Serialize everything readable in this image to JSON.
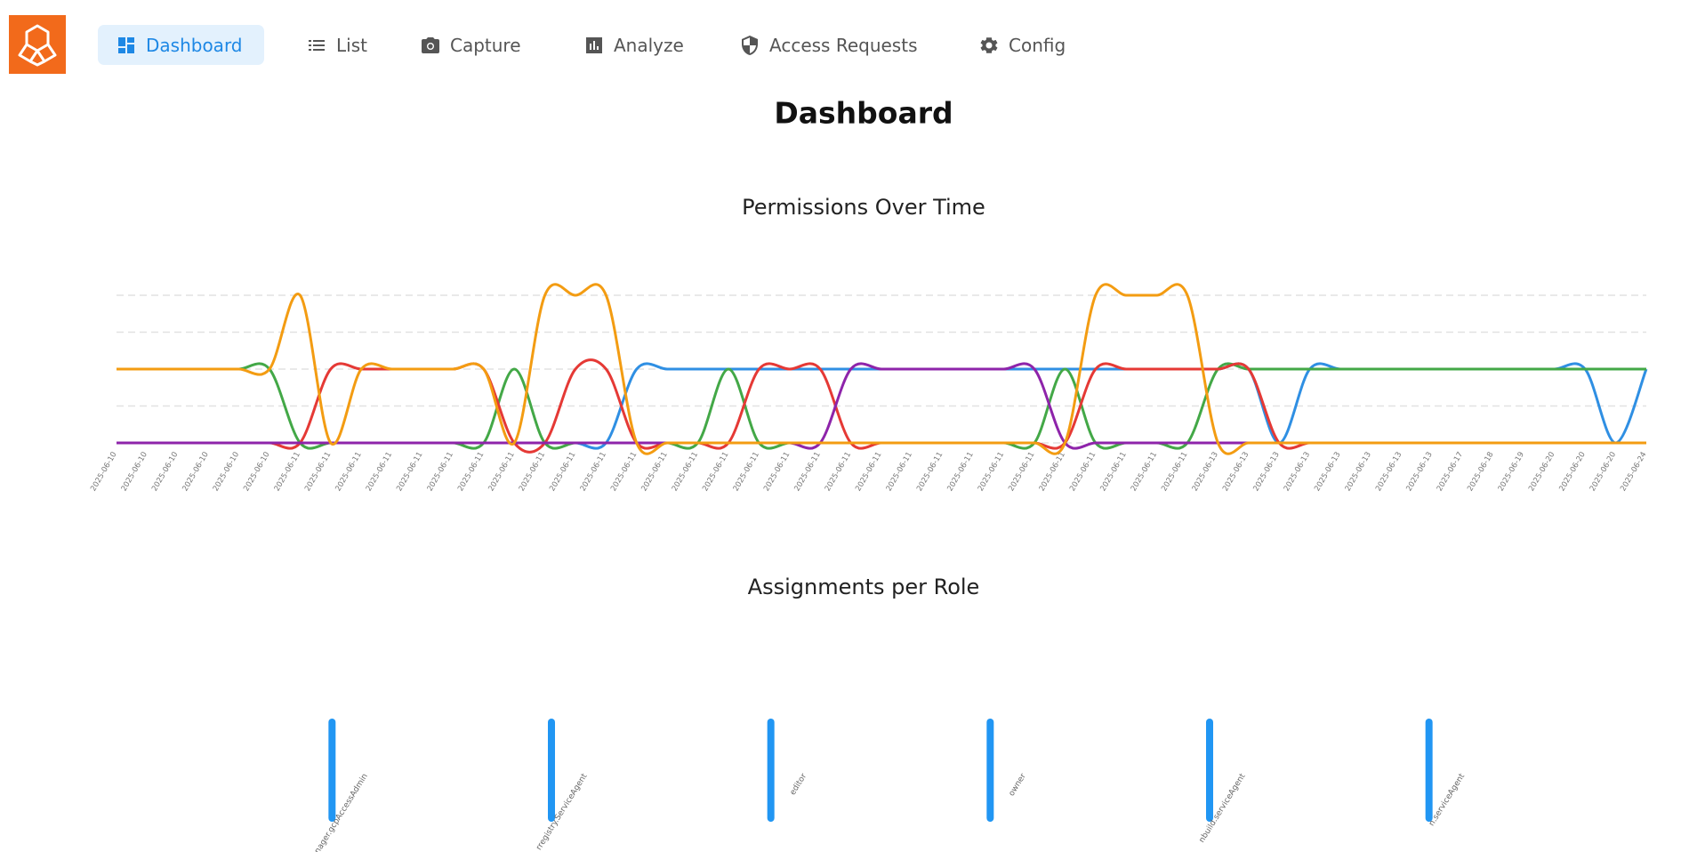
{
  "nav": {
    "items": [
      "Dashboard",
      "List",
      "Capture",
      "Analyze",
      "Access Requests",
      "Config"
    ]
  },
  "page_title": "Dashboard",
  "chart_data": [
    {
      "type": "line",
      "title": "Permissions Over Time",
      "smooth": true,
      "grid": true,
      "show_ytick_labels": false,
      "categories": [
        "2025-06-10",
        "2025-06-10",
        "2025-06-10",
        "2025-06-10",
        "2025-06-10",
        "2025-06-10",
        "2025-06-11",
        "2025-06-11",
        "2025-06-11",
        "2025-06-11",
        "2025-06-11",
        "2025-06-11",
        "2025-06-11",
        "2025-06-11",
        "2025-06-11",
        "2025-06-11",
        "2025-06-11",
        "2025-06-11",
        "2025-06-11",
        "2025-06-11",
        "2025-06-11",
        "2025-06-11",
        "2025-06-11",
        "2025-06-11",
        "2025-06-11",
        "2025-06-11",
        "2025-06-11",
        "2025-06-11",
        "2025-06-11",
        "2025-06-11",
        "2025-06-11",
        "2025-06-11",
        "2025-06-11",
        "2025-06-11",
        "2025-06-11",
        "2025-06-11",
        "2025-06-13",
        "2025-06-13",
        "2025-06-13",
        "2025-06-13",
        "2025-06-13",
        "2025-06-13",
        "2025-06-13",
        "2025-06-13",
        "2025-06-17",
        "2025-06-18",
        "2025-06-19",
        "2025-06-20",
        "2025-06-20",
        "2025-06-20",
        "2025-06-24"
      ],
      "ylim": [
        0,
        2
      ],
      "yticks": [
        0,
        0.5,
        1,
        1.5,
        2
      ],
      "series": [
        {
          "color": "#2f8fe3",
          "values": [
            0,
            0,
            0,
            0,
            0,
            0,
            0,
            0,
            0,
            0,
            0,
            0,
            0,
            0,
            0,
            0,
            0,
            1,
            1,
            1,
            1,
            1,
            1,
            1,
            1,
            1,
            1,
            1,
            1,
            1,
            1,
            1,
            1,
            1,
            1,
            1,
            1,
            1,
            0,
            1,
            1,
            1,
            1,
            1,
            1,
            1,
            1,
            1,
            1,
            0,
            1
          ]
        },
        {
          "color": "#43a847",
          "values": [
            1,
            1,
            1,
            1,
            1,
            1,
            0,
            0,
            0,
            0,
            0,
            0,
            0,
            1,
            0,
            0,
            0,
            0,
            0,
            0,
            1,
            0,
            0,
            0,
            0,
            0,
            0,
            0,
            0,
            0,
            0,
            1,
            0,
            0,
            0,
            0,
            1,
            1,
            1,
            1,
            1,
            1,
            1,
            1,
            1,
            1,
            1,
            1,
            1,
            1,
            1
          ]
        },
        {
          "color": "#e53935",
          "values": [
            0,
            0,
            0,
            0,
            0,
            0,
            0,
            1,
            1,
            1,
            1,
            1,
            1,
            0,
            0,
            1,
            1,
            0,
            0,
            0,
            0,
            1,
            1,
            1,
            0,
            0,
            0,
            0,
            0,
            0,
            0,
            0,
            1,
            1,
            1,
            1,
            1,
            1,
            0,
            0,
            0,
            0,
            0,
            0,
            0,
            0,
            0,
            0,
            0,
            0,
            0
          ]
        },
        {
          "color": "#8e24aa",
          "values": [
            0,
            0,
            0,
            0,
            0,
            0,
            0,
            0,
            0,
            0,
            0,
            0,
            0,
            0,
            0,
            0,
            0,
            0,
            0,
            0,
            0,
            0,
            0,
            0,
            1,
            1,
            1,
            1,
            1,
            1,
            1,
            0,
            0,
            0,
            0,
            0,
            0,
            0,
            0,
            0,
            0,
            0,
            0,
            0,
            0,
            0,
            0,
            0,
            0,
            0,
            0
          ]
        },
        {
          "color": "#f39c12",
          "values": [
            1,
            1,
            1,
            1,
            1,
            1,
            2,
            0,
            1,
            1,
            1,
            1,
            1,
            0,
            2,
            2,
            2,
            0,
            0,
            0,
            0,
            0,
            0,
            0,
            0,
            0,
            0,
            0,
            0,
            0,
            0,
            0,
            2,
            2,
            2,
            2,
            0,
            0,
            0,
            0,
            0,
            0,
            0,
            0,
            0,
            0,
            0,
            0,
            0,
            0,
            0
          ]
        }
      ]
    },
    {
      "type": "bar",
      "title": "Assignments per Role",
      "categories": [
        "tmanager.gcpAccessAdmin",
        "rregistry.ServiceAgent",
        "editor",
        "owner",
        "nbuild.serviceAgent",
        "n.serviceAgent"
      ],
      "values": [
        1,
        1,
        1,
        1,
        1,
        1
      ],
      "color": "#2196f3",
      "ylim": [
        0,
        1.5
      ]
    }
  ]
}
